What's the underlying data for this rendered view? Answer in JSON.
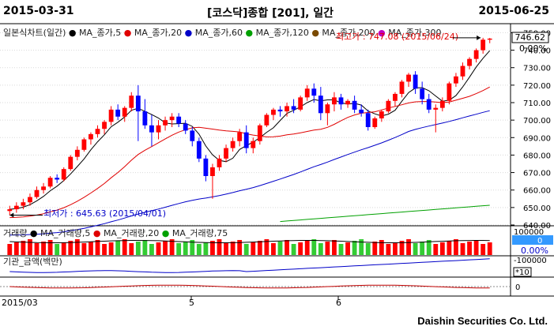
{
  "header": {
    "start_date": "2015-03-31",
    "title": "[코스닥]종합 [201], 일간",
    "end_date": "2015-06-25"
  },
  "footer": {
    "company": "Daishin Securities Co. Ltd."
  },
  "price_panel": {
    "legend": [
      {
        "label": "일본식차트(일간)",
        "color": "#222222"
      },
      {
        "label": "MA_종가,5",
        "color": "#000000"
      },
      {
        "label": "MA_종가,20",
        "color": "#e00000"
      },
      {
        "label": "MA_종가,60",
        "color": "#0000c8"
      },
      {
        "label": "MA_종가,120",
        "color": "#00a000"
      },
      {
        "label": "MA_종가,200",
        "color": "#7a4a00"
      },
      {
        "label": "MA_종가,300",
        "color": "#c000c0"
      }
    ],
    "current_price": "746.62",
    "change_pct": "0.00%",
    "high_label": "최고가 : 747.08 (2015/06/24)",
    "low_label": "최저가 : 645.63 (2015/04/01)",
    "axis_ticks": [
      "750.00",
      "740.00",
      "730.00",
      "720.00",
      "710.00",
      "700.00",
      "690.00",
      "680.00",
      "670.00",
      "660.00",
      "650.00",
      "640.00"
    ],
    "tick_values": [
      750,
      740,
      730,
      720,
      710,
      700,
      690,
      680,
      670,
      660,
      650,
      640
    ]
  },
  "volume_panel": {
    "legend": [
      {
        "label": "거래량",
        "color": "#222222"
      },
      {
        "label": "MA_거래량,5",
        "color": "#000000"
      },
      {
        "label": "MA_거래량,20",
        "color": "#e00000"
      },
      {
        "label": "MA_거래량,75",
        "color": "#00a000"
      }
    ],
    "axis_top": "100000",
    "current_value": "0",
    "change_pct": "0.00%"
  },
  "institution_panel": {
    "legend": "기관_금액(백만)",
    "axis_label": "-100000",
    "unit": "*10"
  },
  "bottom_panel": {
    "axis_label": "0"
  },
  "x_axis": {
    "labels": [
      "2015/03",
      "5",
      "6"
    ]
  },
  "chart_data": {
    "type": "candlestick",
    "ylim": [
      640,
      752
    ],
    "candles": [
      {
        "o": 648,
        "h": 651,
        "l": 645.6,
        "c": 649
      },
      {
        "o": 649,
        "h": 653,
        "l": 647,
        "c": 651
      },
      {
        "o": 651,
        "h": 655,
        "l": 649,
        "c": 653
      },
      {
        "o": 653,
        "h": 658,
        "l": 651,
        "c": 656
      },
      {
        "o": 656,
        "h": 662,
        "l": 655,
        "c": 660
      },
      {
        "o": 660,
        "h": 664,
        "l": 658,
        "c": 662
      },
      {
        "o": 662,
        "h": 668,
        "l": 661,
        "c": 667
      },
      {
        "o": 667,
        "h": 669,
        "l": 664,
        "c": 666
      },
      {
        "o": 666,
        "h": 673,
        "l": 665,
        "c": 672
      },
      {
        "o": 672,
        "h": 680,
        "l": 671,
        "c": 679
      },
      {
        "o": 679,
        "h": 685,
        "l": 677,
        "c": 683
      },
      {
        "o": 683,
        "h": 690,
        "l": 682,
        "c": 689
      },
      {
        "o": 689,
        "h": 693,
        "l": 686,
        "c": 692
      },
      {
        "o": 692,
        "h": 697,
        "l": 690,
        "c": 695
      },
      {
        "o": 695,
        "h": 700,
        "l": 692,
        "c": 699
      },
      {
        "o": 699,
        "h": 708,
        "l": 697,
        "c": 706
      },
      {
        "o": 706,
        "h": 709,
        "l": 700,
        "c": 702
      },
      {
        "o": 702,
        "h": 708,
        "l": 699,
        "c": 707
      },
      {
        "o": 707,
        "h": 716,
        "l": 705,
        "c": 714
      },
      {
        "o": 714,
        "h": 720,
        "l": 688,
        "c": 705
      },
      {
        "o": 705,
        "h": 712,
        "l": 695,
        "c": 697
      },
      {
        "o": 697,
        "h": 703,
        "l": 685,
        "c": 693
      },
      {
        "o": 693,
        "h": 700,
        "l": 689,
        "c": 697
      },
      {
        "o": 697,
        "h": 702,
        "l": 694,
        "c": 700
      },
      {
        "o": 700,
        "h": 704,
        "l": 696,
        "c": 702
      },
      {
        "o": 702,
        "h": 704,
        "l": 696,
        "c": 698
      },
      {
        "o": 698,
        "h": 700,
        "l": 692,
        "c": 694
      },
      {
        "o": 694,
        "h": 696,
        "l": 685,
        "c": 688
      },
      {
        "o": 688,
        "h": 690,
        "l": 676,
        "c": 678
      },
      {
        "o": 678,
        "h": 680,
        "l": 665,
        "c": 668
      },
      {
        "o": 668,
        "h": 675,
        "l": 655,
        "c": 673
      },
      {
        "o": 673,
        "h": 680,
        "l": 671,
        "c": 678
      },
      {
        "o": 678,
        "h": 686,
        "l": 676,
        "c": 684
      },
      {
        "o": 684,
        "h": 690,
        "l": 682,
        "c": 688
      },
      {
        "o": 688,
        "h": 695,
        "l": 685,
        "c": 693
      },
      {
        "o": 693,
        "h": 697,
        "l": 681,
        "c": 684
      },
      {
        "o": 684,
        "h": 690,
        "l": 681,
        "c": 688
      },
      {
        "o": 688,
        "h": 698,
        "l": 686,
        "c": 697
      },
      {
        "o": 697,
        "h": 704,
        "l": 696,
        "c": 703
      },
      {
        "o": 703,
        "h": 707,
        "l": 700,
        "c": 706
      },
      {
        "o": 706,
        "h": 708,
        "l": 702,
        "c": 705
      },
      {
        "o": 705,
        "h": 710,
        "l": 702,
        "c": 708
      },
      {
        "o": 708,
        "h": 712,
        "l": 704,
        "c": 706
      },
      {
        "o": 706,
        "h": 714,
        "l": 705,
        "c": 713
      },
      {
        "o": 713,
        "h": 720,
        "l": 711,
        "c": 718
      },
      {
        "o": 718,
        "h": 721,
        "l": 710,
        "c": 714
      },
      {
        "o": 714,
        "h": 719,
        "l": 700,
        "c": 704
      },
      {
        "o": 704,
        "h": 710,
        "l": 697,
        "c": 709
      },
      {
        "o": 709,
        "h": 716,
        "l": 705,
        "c": 713
      },
      {
        "o": 713,
        "h": 715,
        "l": 706,
        "c": 709
      },
      {
        "o": 709,
        "h": 712,
        "l": 707,
        "c": 711
      },
      {
        "o": 711,
        "h": 714,
        "l": 704,
        "c": 706
      },
      {
        "o": 706,
        "h": 709,
        "l": 702,
        "c": 704
      },
      {
        "o": 704,
        "h": 706,
        "l": 694,
        "c": 696
      },
      {
        "o": 696,
        "h": 702,
        "l": 695,
        "c": 701
      },
      {
        "o": 701,
        "h": 706,
        "l": 699,
        "c": 705
      },
      {
        "o": 705,
        "h": 712,
        "l": 704,
        "c": 711
      },
      {
        "o": 711,
        "h": 716,
        "l": 708,
        "c": 715
      },
      {
        "o": 715,
        "h": 723,
        "l": 713,
        "c": 722
      },
      {
        "o": 722,
        "h": 727,
        "l": 719,
        "c": 726
      },
      {
        "o": 726,
        "h": 728,
        "l": 715,
        "c": 718
      },
      {
        "o": 718,
        "h": 722,
        "l": 709,
        "c": 712
      },
      {
        "o": 712,
        "h": 715,
        "l": 704,
        "c": 706
      },
      {
        "o": 706,
        "h": 709,
        "l": 693,
        "c": 707
      },
      {
        "o": 707,
        "h": 713,
        "l": 705,
        "c": 711
      },
      {
        "o": 711,
        "h": 722,
        "l": 709,
        "c": 721
      },
      {
        "o": 721,
        "h": 727,
        "l": 719,
        "c": 725
      },
      {
        "o": 725,
        "h": 733,
        "l": 723,
        "c": 731
      },
      {
        "o": 731,
        "h": 736,
        "l": 729,
        "c": 735
      },
      {
        "o": 735,
        "h": 741,
        "l": 733,
        "c": 740
      },
      {
        "o": 740,
        "h": 747.08,
        "l": 738,
        "c": 746
      },
      {
        "o": 746,
        "h": 747,
        "l": 744,
        "c": 746.62
      }
    ]
  }
}
